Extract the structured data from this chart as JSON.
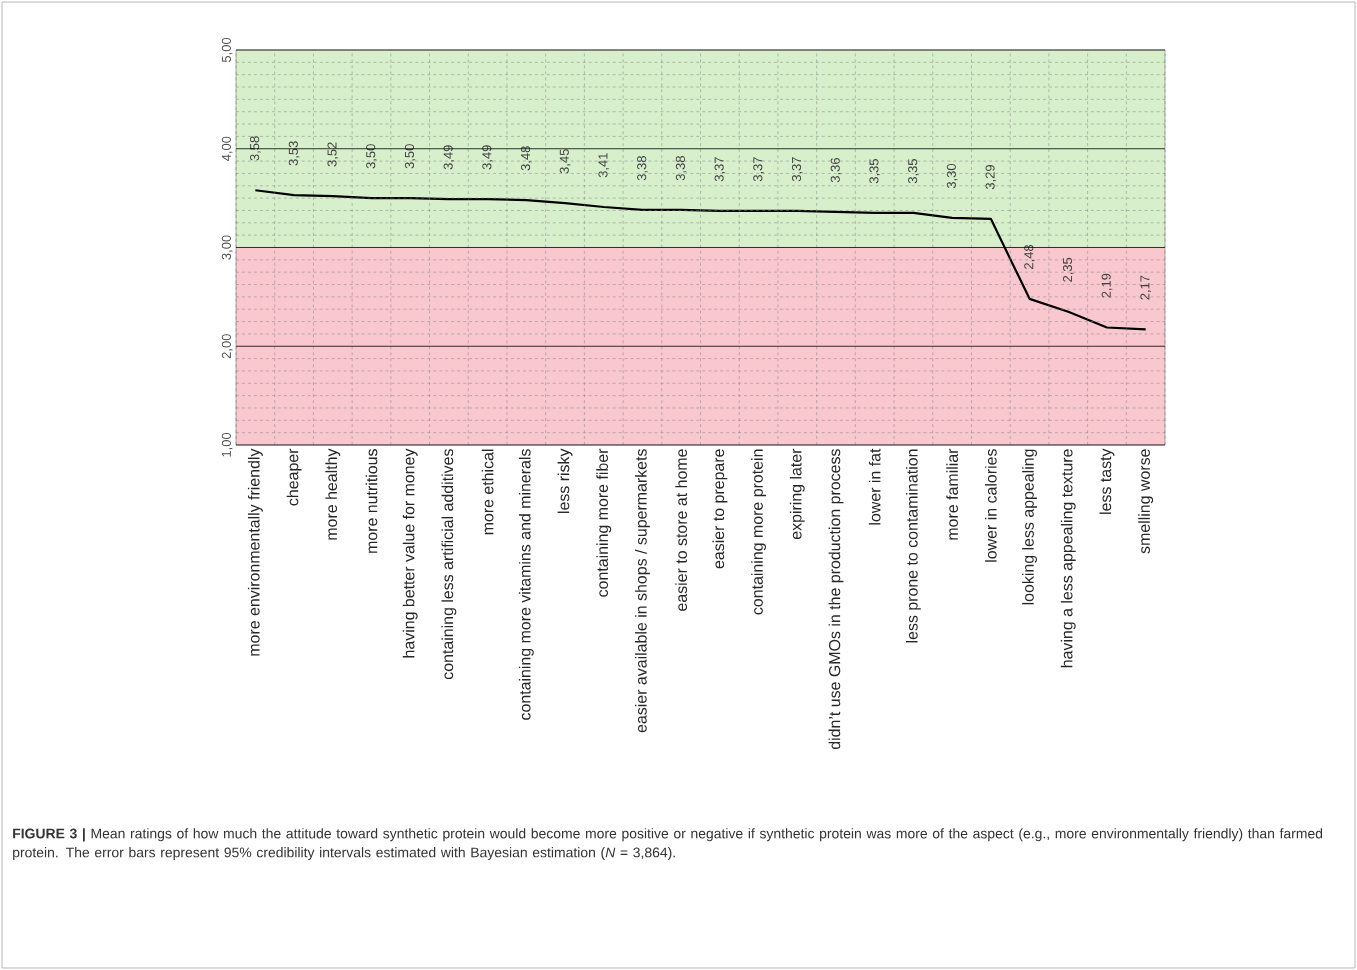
{
  "chart_data": {
    "type": "line",
    "categories": [
      "more environmentally friendly",
      "cheaper",
      "more healthy",
      "more nutritious",
      "having better value for money",
      "containing less artificial additives",
      "more ethical",
      "containing more vitamins and minerals",
      "less risky",
      "containing more fiber",
      "easier available in shops / supermarkets",
      "easier to store at home",
      "easier to prepare",
      "containing more protein",
      "expiring later",
      "didn’t use GMOs in the production process",
      "lower in fat",
      "less prone to contamination",
      "more familiar",
      "lower in calories",
      "looking less appealing",
      "having a less appealing texture",
      "less tasty",
      "smelling worse"
    ],
    "values": [
      3.58,
      3.53,
      3.52,
      3.5,
      3.5,
      3.49,
      3.49,
      3.48,
      3.45,
      3.41,
      3.38,
      3.38,
      3.37,
      3.37,
      3.37,
      3.36,
      3.35,
      3.35,
      3.3,
      3.29,
      2.48,
      2.35,
      2.19,
      2.17
    ],
    "value_labels": [
      "3,58",
      "3,53",
      "3,52",
      "3,50",
      "3,50",
      "3,49",
      "3,49",
      "3,48",
      "3,45",
      "3,41",
      "3,38",
      "3,38",
      "3,37",
      "3,37",
      "3,37",
      "3,36",
      "3,35",
      "3,35",
      "3,30",
      "3,29",
      "2,48",
      "2,35",
      "2,19",
      "2,17"
    ],
    "color": "#000000",
    "ylim": [
      1,
      5
    ],
    "yticks": [
      {
        "value": 1,
        "label": "1,00"
      },
      {
        "value": 2,
        "label": "2,00"
      },
      {
        "value": 3,
        "label": "3,00"
      },
      {
        "value": 4,
        "label": "4,00"
      },
      {
        "value": 5,
        "label": "5,00"
      }
    ],
    "grid": true,
    "bands": [
      {
        "axis": "y",
        "from": 3,
        "to": 5,
        "color": "#d8efcc"
      },
      {
        "axis": "y",
        "from": 1,
        "to": 3,
        "color": "#f8c8ce"
      }
    ],
    "annotations": [
      "**FIGURE 3 |** Mean ratings of how much the attitude toward synthetic protein would become more positive or negative if synthetic protein was more of the aspect (e.g., more environmentally friendly) than farmed protein. The error bars represent 95% credibility intervals estimated with Bayesian estimation (*N* = 3,864)."
    ]
  }
}
